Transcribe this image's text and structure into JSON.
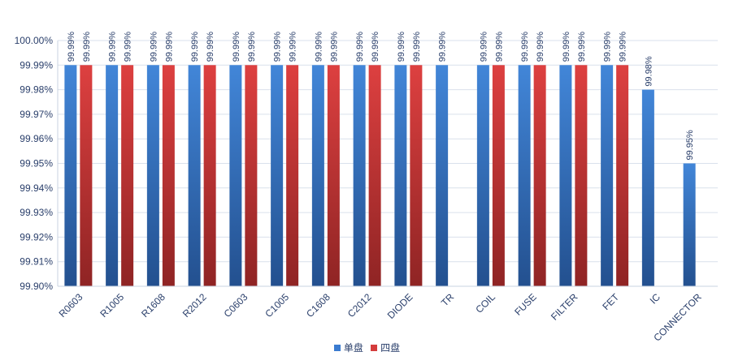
{
  "chart_data": {
    "type": "bar",
    "categories": [
      "R0603",
      "R1005",
      "R1608",
      "R2012",
      "C0603",
      "C1005",
      "C1608",
      "C2012",
      "DIODE",
      "TR",
      "COIL",
      "FUSE",
      "FILTER",
      "FET",
      "IC",
      "CONNECTOR"
    ],
    "series": [
      {
        "name": "单盘",
        "color": "#3a7bd0",
        "values": [
          99.99,
          99.99,
          99.99,
          99.99,
          99.99,
          99.99,
          99.99,
          99.99,
          99.99,
          99.99,
          99.99,
          99.99,
          99.99,
          99.99,
          99.98,
          99.95
        ],
        "labels": [
          "99.99%",
          "99.99%",
          "99.99%",
          "99.99%",
          "99.99%",
          "99.99%",
          "99.99%",
          "99.99%",
          "99.99%",
          "99.99%",
          "99.99%",
          "99.99%",
          "99.99%",
          "99.99%",
          "99.98%",
          "99.95%"
        ]
      },
      {
        "name": "四盘",
        "color": "#d43c3c",
        "values": [
          99.99,
          99.99,
          99.99,
          99.99,
          99.99,
          99.99,
          99.99,
          99.99,
          99.99,
          null,
          99.99,
          99.99,
          99.99,
          99.99,
          null,
          null
        ],
        "labels": [
          "99.99%",
          "99.99%",
          "99.99%",
          "99.99%",
          "99.99%",
          "99.99%",
          "99.99%",
          "99.99%",
          "99.99%",
          null,
          "99.99%",
          "99.99%",
          "99.99%",
          "99.99%",
          null,
          null
        ]
      }
    ],
    "yticks": [
      "99.90%",
      "99.91%",
      "99.92%",
      "99.93%",
      "99.94%",
      "99.95%",
      "99.96%",
      "99.97%",
      "99.98%",
      "99.99%",
      "100.00%"
    ],
    "ylim": [
      99.9,
      100.0
    ],
    "grid": true,
    "legend_position": "bottom-center",
    "title": "",
    "xlabel": "",
    "ylabel": ""
  }
}
